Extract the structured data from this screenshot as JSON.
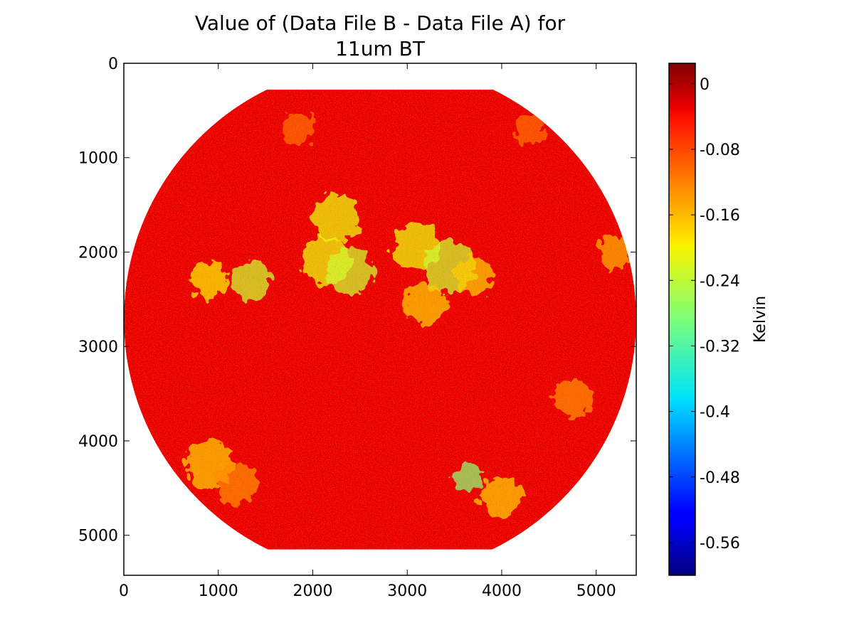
{
  "chart_data": {
    "type": "heatmap",
    "title_lines": [
      "Value of (Data File B - Data File A) for",
      "11um BT"
    ],
    "xlim": [
      0,
      5424
    ],
    "ylim": [
      5424,
      0
    ],
    "x_ticks": [
      {
        "value": 0,
        "label": "0"
      },
      {
        "value": 1000,
        "label": "1000"
      },
      {
        "value": 2000,
        "label": "2000"
      },
      {
        "value": 3000,
        "label": "3000"
      },
      {
        "value": 4000,
        "label": "4000"
      },
      {
        "value": 5000,
        "label": "5000"
      }
    ],
    "y_ticks": [
      {
        "value": 0,
        "label": "0"
      },
      {
        "value": 1000,
        "label": "1000"
      },
      {
        "value": 2000,
        "label": "2000"
      },
      {
        "value": 3000,
        "label": "3000"
      },
      {
        "value": 4000,
        "label": "4000"
      },
      {
        "value": 5000,
        "label": "5000"
      }
    ],
    "grid": false,
    "image": {
      "disk_center": [
        2712,
        2712
      ],
      "disk_radius": 2712,
      "valid_rows": [
        280,
        5150
      ],
      "background_value": -0.04,
      "anomaly_regions": [
        {
          "x": 2250,
          "y": 1650,
          "r": 260,
          "value": -0.22
        },
        {
          "x": 2150,
          "y": 2100,
          "r": 250,
          "value": -0.22
        },
        {
          "x": 2400,
          "y": 2200,
          "r": 250,
          "value": -0.24
        },
        {
          "x": 3100,
          "y": 1950,
          "r": 250,
          "value": -0.22
        },
        {
          "x": 3450,
          "y": 2150,
          "r": 280,
          "value": -0.24
        },
        {
          "x": 3700,
          "y": 2250,
          "r": 200,
          "value": -0.18
        },
        {
          "x": 3200,
          "y": 2550,
          "r": 220,
          "value": -0.18
        },
        {
          "x": 1350,
          "y": 2300,
          "r": 200,
          "value": -0.24
        },
        {
          "x": 900,
          "y": 2300,
          "r": 200,
          "value": -0.2
        },
        {
          "x": 900,
          "y": 4250,
          "r": 260,
          "value": -0.18
        },
        {
          "x": 1200,
          "y": 4450,
          "r": 220,
          "value": -0.14
        },
        {
          "x": 3650,
          "y": 4400,
          "r": 150,
          "value": -0.28
        },
        {
          "x": 4000,
          "y": 4600,
          "r": 220,
          "value": -0.18
        },
        {
          "x": 4750,
          "y": 3550,
          "r": 200,
          "value": -0.14
        },
        {
          "x": 5200,
          "y": 2000,
          "r": 180,
          "value": -0.16
        },
        {
          "x": 4300,
          "y": 700,
          "r": 160,
          "value": -0.12
        },
        {
          "x": 1850,
          "y": 700,
          "r": 180,
          "value": -0.12
        }
      ]
    },
    "colorbar": {
      "label": "Kelvin",
      "vmin": -0.6,
      "vmax": 0.025,
      "colormap": "jet",
      "tick_values": [
        0,
        -0.08,
        -0.16,
        -0.24,
        -0.32,
        -0.4,
        -0.48,
        -0.56
      ],
      "tick_labels": [
        "0",
        "-0.08",
        "-0.16",
        "-0.24",
        "-0.32",
        "-0.4",
        "-0.48",
        "-0.56"
      ]
    }
  }
}
